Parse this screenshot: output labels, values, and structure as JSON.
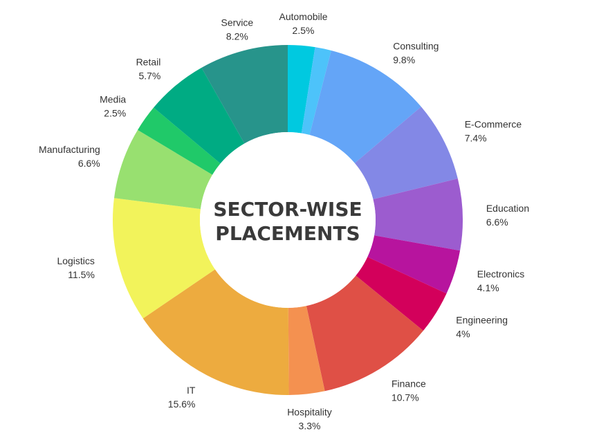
{
  "chart_data": {
    "type": "pie",
    "title": "SECTOR-WISE PLACEMENTS",
    "title_lines": [
      "SECTOR-WISE",
      "PLACEMENTS"
    ],
    "donut": true,
    "slices": [
      {
        "label": "Automobile",
        "value": 2.5,
        "value_text": "2.5%",
        "color": "#00c9e0"
      },
      {
        "label": "",
        "value": 1.5,
        "value_text": "",
        "color": "#4dc3fa"
      },
      {
        "label": "Consulting",
        "value": 9.8,
        "value_text": "9.8%",
        "color": "#64a5f7"
      },
      {
        "label": "E-Commerce",
        "value": 7.4,
        "value_text": "7.4%",
        "color": "#8388e6"
      },
      {
        "label": "Education",
        "value": 6.6,
        "value_text": "6.6%",
        "color": "#9c5ccf"
      },
      {
        "label": "Electronics",
        "value": 4.1,
        "value_text": "4.1%",
        "color": "#b7149e"
      },
      {
        "label": "Engineering",
        "value": 4.0,
        "value_text": "4%",
        "color": "#d3005b"
      },
      {
        "label": "Finance",
        "value": 10.7,
        "value_text": "10.7%",
        "color": "#df5046"
      },
      {
        "label": "Hospitality",
        "value": 3.3,
        "value_text": "3.3%",
        "color": "#f49150"
      },
      {
        "label": "IT",
        "value": 15.6,
        "value_text": "15.6%",
        "color": "#edab3f"
      },
      {
        "label": "Logistics",
        "value": 11.5,
        "value_text": "11.5%",
        "color": "#f2f35b"
      },
      {
        "label": "Manufacturing",
        "value": 6.6,
        "value_text": "6.6%",
        "color": "#98e070"
      },
      {
        "label": "Media",
        "value": 2.5,
        "value_text": "2.5%",
        "color": "#20c969"
      },
      {
        "label": "Retail",
        "value": 5.7,
        "value_text": "5.7%",
        "color": "#00ab83"
      },
      {
        "label": "Service",
        "value": 8.2,
        "value_text": "8.2%",
        "color": "#27948b"
      }
    ]
  }
}
